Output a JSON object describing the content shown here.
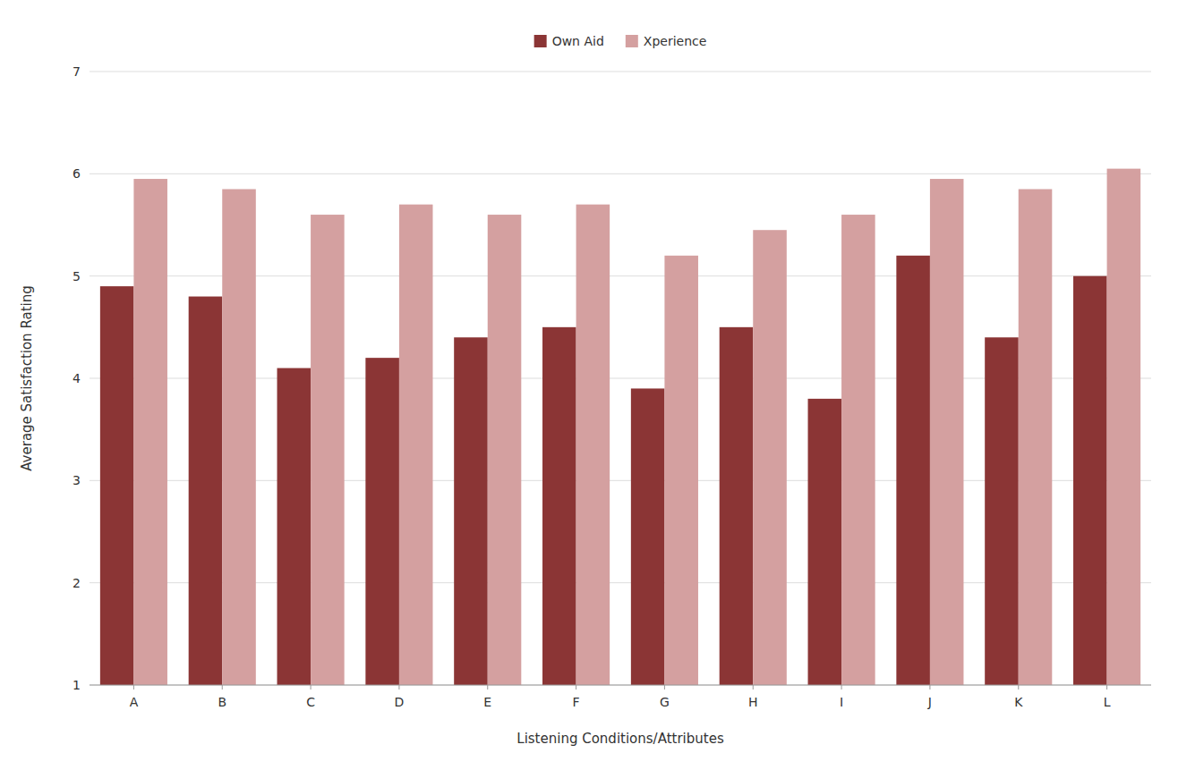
{
  "chart_data": {
    "type": "bar",
    "x_label": "Listening Conditions/Attributes",
    "y_label": "Average Satisfaction Rating",
    "categories": [
      "A",
      "B",
      "C",
      "D",
      "E",
      "F",
      "G",
      "H",
      "I",
      "J",
      "K",
      "L"
    ],
    "series": [
      {
        "name": "Own Aid",
        "color": "#8B3535",
        "values": [
          4.9,
          4.8,
          4.1,
          4.2,
          4.4,
          4.5,
          3.9,
          4.5,
          3.8,
          5.2,
          4.4,
          5.0
        ]
      },
      {
        "name": "Xperience",
        "color": "#D4A0A0",
        "values": [
          5.95,
          5.85,
          5.6,
          5.7,
          5.6,
          5.7,
          5.2,
          5.45,
          5.6,
          5.95,
          5.85,
          6.05
        ]
      }
    ],
    "ylim": [
      1,
      7
    ],
    "yticks": [
      1,
      2,
      3,
      4,
      5,
      6,
      7
    ],
    "grid": true,
    "legend": "top"
  }
}
